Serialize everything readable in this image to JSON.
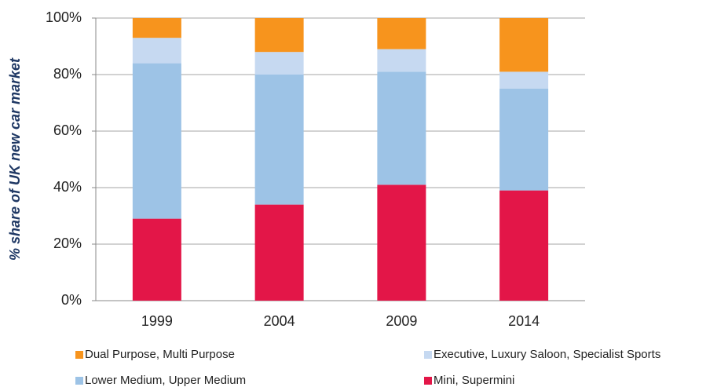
{
  "chart_data": {
    "type": "stacked_bar",
    "y_label": "% share of UK new car market",
    "categories": [
      "1999",
      "2004",
      "2009",
      "2014"
    ],
    "series": [
      {
        "name": "Mini, Supermini",
        "color": "#e31648",
        "values": [
          29,
          34,
          41,
          39
        ]
      },
      {
        "name": "Lower Medium, Upper Medium",
        "color": "#9dc3e6",
        "values": [
          55,
          46,
          40,
          36
        ]
      },
      {
        "name": "Executive, Luxury Saloon, Specialist Sports",
        "color": "#c6d9f1",
        "values": [
          9,
          8,
          8,
          6
        ]
      },
      {
        "name": "Dual Purpose, Multi Purpose",
        "color": "#f7941d",
        "values": [
          7,
          12,
          11,
          19
        ]
      }
    ],
    "ylim": [
      0,
      100
    ],
    "yticks": [
      {
        "value": 0,
        "label": "0%"
      },
      {
        "value": 20,
        "label": "20%"
      },
      {
        "value": 40,
        "label": "40%"
      },
      {
        "value": 60,
        "label": "60%"
      },
      {
        "value": 80,
        "label": "80%"
      },
      {
        "value": 100,
        "label": "100%"
      }
    ],
    "grid": true
  }
}
